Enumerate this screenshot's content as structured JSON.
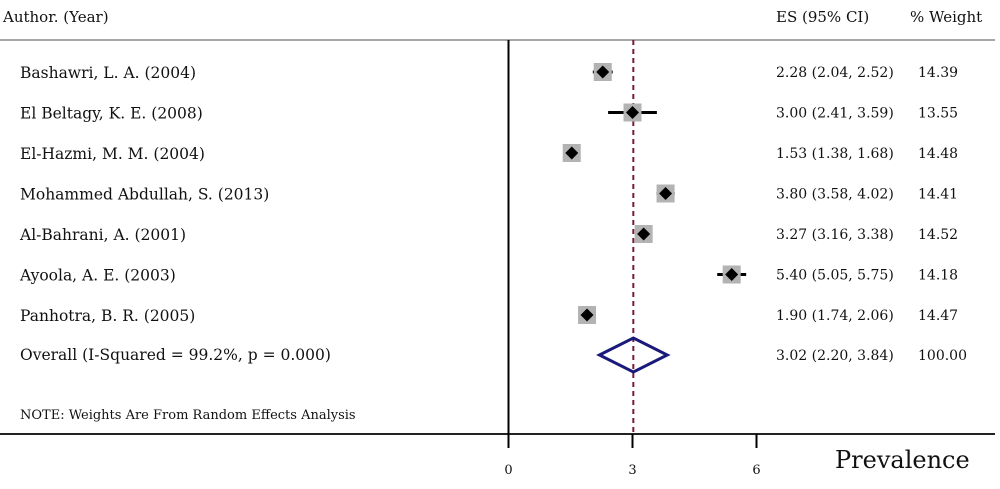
{
  "chart_data": {
    "type": "forest",
    "headers": {
      "study": "Author. (Year)",
      "es": "ES (95% CI)",
      "weight": "% Weight"
    },
    "studies": [
      {
        "label": "Bashawri, L. A. (2004)",
        "es": 2.28,
        "lo": 2.04,
        "hi": 2.52,
        "es_text": "2.28 (2.04, 2.52)",
        "weight": 14.39,
        "weight_text": "14.39"
      },
      {
        "label": "El Beltagy, K. E. (2008)",
        "es": 3.0,
        "lo": 2.41,
        "hi": 3.59,
        "es_text": "3.00 (2.41, 3.59)",
        "weight": 13.55,
        "weight_text": "13.55"
      },
      {
        "label": "El-Hazmi, M. M. (2004)",
        "es": 1.53,
        "lo": 1.38,
        "hi": 1.68,
        "es_text": "1.53 (1.38, 1.68)",
        "weight": 14.48,
        "weight_text": "14.48"
      },
      {
        "label": "Mohammed Abdullah, S. (2013)",
        "es": 3.8,
        "lo": 3.58,
        "hi": 4.02,
        "es_text": "3.80 (3.58, 4.02)",
        "weight": 14.41,
        "weight_text": "14.41"
      },
      {
        "label": "Al-Bahrani, A. (2001)",
        "es": 3.27,
        "lo": 3.16,
        "hi": 3.38,
        "es_text": "3.27 (3.16, 3.38)",
        "weight": 14.52,
        "weight_text": "14.52"
      },
      {
        "label": "Ayoola, A. E. (2003)",
        "es": 5.4,
        "lo": 5.05,
        "hi": 5.75,
        "es_text": "5.40 (5.05, 5.75)",
        "weight": 14.18,
        "weight_text": "14.18"
      },
      {
        "label": "Panhotra, B. R. (2005)",
        "es": 1.9,
        "lo": 1.74,
        "hi": 2.06,
        "es_text": "1.90 (1.74, 2.06)",
        "weight": 14.47,
        "weight_text": "14.47"
      }
    ],
    "overall": {
      "label": "Overall  (I-Squared = 99.2%, p = 0.000)",
      "es": 3.02,
      "lo": 2.2,
      "hi": 3.84,
      "es_text": "3.02 (2.20, 3.84)",
      "weight_text": "100.00"
    },
    "note": "NOTE: Weights Are From Random Effects Analysis",
    "x_ticks": [
      0,
      3,
      6
    ],
    "xlim": [
      0,
      6
    ],
    "xlabel": "Prevalence",
    "colors": {
      "point": "#000000",
      "weight_box": "#b3b3b3",
      "ci_line": "#000000",
      "overall_diamond": "#1a1a7a",
      "overall_line": "#7a1a3a"
    }
  }
}
